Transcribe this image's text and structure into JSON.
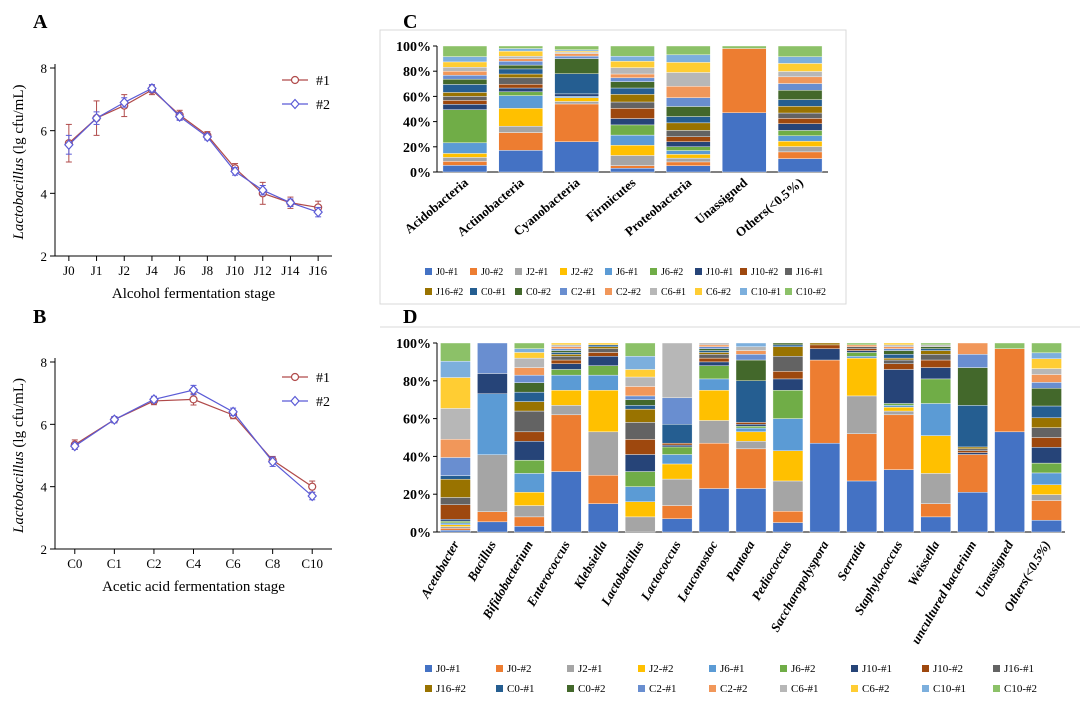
{
  "panels": {
    "A": {
      "letter": "A",
      "chart_data": {
        "type": "line",
        "xlabel": "Alcohol fermentation stage",
        "ylabel_italic": "Lactobacillus",
        "ylabel_suffix": " (lg cfu/mL)",
        "ylim": [
          2,
          8
        ],
        "yticks": [
          2,
          4,
          6,
          8
        ],
        "categories": [
          "J0",
          "J1",
          "J2",
          "J4",
          "J6",
          "J8",
          "J10",
          "J12",
          "J14",
          "J16"
        ],
        "legend_position": "top-right",
        "series": [
          {
            "name": "#1",
            "color": "#b04a4a",
            "marker": "circle",
            "values": [
              5.6,
              6.4,
              6.8,
              7.3,
              6.5,
              5.85,
              4.8,
              4.0,
              3.7,
              3.55
            ],
            "errors": [
              0.6,
              0.55,
              0.35,
              0.15,
              0.15,
              0.12,
              0.15,
              0.35,
              0.18,
              0.2
            ]
          },
          {
            "name": "#2",
            "color": "#5b5bd6",
            "marker": "diamond",
            "values": [
              5.55,
              6.4,
              6.9,
              7.35,
              6.45,
              5.8,
              4.7,
              4.1,
              3.7,
              3.4
            ],
            "errors": [
              0.3,
              0.2,
              0.15,
              0.12,
              0.12,
              0.1,
              0.12,
              0.15,
              0.12,
              0.15
            ]
          }
        ]
      }
    },
    "B": {
      "letter": "B",
      "chart_data": {
        "type": "line",
        "xlabel": "Acetic acid fermentation stage",
        "ylabel_italic": "Lactobacillus",
        "ylabel_suffix": " (lg cfu/mL)",
        "ylim": [
          2,
          8
        ],
        "yticks": [
          2,
          4,
          6,
          8
        ],
        "categories": [
          "C0",
          "C1",
          "C2",
          "C4",
          "C6",
          "C8",
          "C10"
        ],
        "legend_position": "top-right",
        "series": [
          {
            "name": "#1",
            "color": "#b04a4a",
            "marker": "circle",
            "values": [
              5.35,
              6.15,
              6.75,
              6.8,
              6.3,
              4.85,
              4.0
            ],
            "errors": [
              0.15,
              0.1,
              0.12,
              0.18,
              0.12,
              0.12,
              0.18
            ]
          },
          {
            "name": "#2",
            "color": "#5b5bd6",
            "marker": "diamond",
            "values": [
              5.3,
              6.15,
              6.8,
              7.1,
              6.4,
              4.8,
              3.7
            ],
            "errors": [
              0.1,
              0.1,
              0.1,
              0.15,
              0.12,
              0.15,
              0.12
            ]
          }
        ]
      }
    },
    "C": {
      "letter": "C",
      "chart_data": {
        "type": "bar",
        "stacked": "percent",
        "yticks": [
          "0%",
          "20%",
          "40%",
          "60%",
          "80%",
          "100%"
        ],
        "categories": [
          "Acidobacteria",
          "Actinobacteria",
          "Cyanobacteria",
          "Firmicutes",
          "Proteobacteria",
          "Unassigned",
          "Others(<0.5%)"
        ],
        "italic_categories": false,
        "legend_position": "bottom",
        "series_names": [
          "J0-#1",
          "J0-#2",
          "J2-#1",
          "J2-#2",
          "J6-#1",
          "J6-#2",
          "J10-#1",
          "J10-#2",
          "J16-#1",
          "J16-#2",
          "C0-#1",
          "C0-#2",
          "C2-#1",
          "C2-#2",
          "C6-#1",
          "C6-#2",
          "C10-#1",
          "C10-#2"
        ],
        "series_colors": [
          "#4472c4",
          "#ed7d31",
          "#a5a5a5",
          "#ffc000",
          "#5b9bd5",
          "#70ad47",
          "#264478",
          "#9e480e",
          "#636363",
          "#997300",
          "#255e91",
          "#43682b",
          "#698ed0",
          "#f1975a",
          "#b7b7b7",
          "#ffcd33",
          "#7cafdd",
          "#8cc168"
        ],
        "bars": [
          [
            5,
            3,
            3,
            3,
            8,
            25,
            4,
            3,
            3,
            3,
            6,
            4,
            3,
            3,
            3,
            4,
            4,
            8
          ],
          [
            17,
            14,
            5,
            14,
            10,
            3,
            3,
            3,
            5,
            3,
            4,
            3,
            3,
            2,
            2,
            4,
            2,
            2
          ],
          [
            24,
            30,
            2,
            3,
            1,
            0,
            2,
            0,
            0,
            0,
            16,
            12,
            2,
            2,
            1,
            1,
            1,
            3
          ],
          [
            3,
            2,
            8,
            8,
            8,
            8,
            5,
            8,
            5,
            6,
            5,
            5,
            3,
            3,
            5,
            5,
            4,
            8
          ],
          [
            5,
            3,
            3,
            3,
            3,
            3,
            4,
            4,
            5,
            6,
            5,
            8,
            7,
            9,
            11,
            8,
            6,
            7
          ],
          [
            47,
            51,
            0,
            0,
            0,
            0,
            0,
            0,
            0,
            0,
            0,
            0,
            0,
            0,
            0,
            0,
            0,
            2
          ],
          [
            10,
            5,
            4,
            4,
            4,
            4,
            5,
            4,
            4,
            5,
            5,
            7,
            5,
            5,
            4,
            6,
            5,
            8
          ]
        ]
      }
    },
    "D": {
      "letter": "D",
      "chart_data": {
        "type": "bar",
        "stacked": "percent",
        "yticks": [
          "0%",
          "20%",
          "40%",
          "60%",
          "80%",
          "100%"
        ],
        "categories": [
          "Acetobacter",
          "Bacillus",
          "Bifidobacterium",
          "Enterococcus",
          "Klebsiella",
          "Lactobacillus",
          "Lactococcus",
          "Leuconostoc",
          "Pantoea",
          "Pediococcus",
          "Saccharopolyspora",
          "Serratia",
          "Staphylococcus",
          "Weissella",
          "uncultured bacterium",
          "Unassigned",
          "Others(<0.5%)"
        ],
        "italic_categories": true,
        "legend_position": "bottom",
        "series_names": [
          "J0-#1",
          "J0-#2",
          "J2-#1",
          "J2-#2",
          "J6-#1",
          "J6-#2",
          "J10-#1",
          "J10-#2",
          "J16-#1",
          "J16-#2",
          "C0-#1",
          "C0-#2",
          "C2-#1",
          "C2-#2",
          "C6-#1",
          "C6-#2",
          "C10-#1",
          "C10-#2"
        ],
        "series_colors": [
          "#4472c4",
          "#ed7d31",
          "#a5a5a5",
          "#ffc000",
          "#5b9bd5",
          "#70ad47",
          "#264478",
          "#9e480e",
          "#636363",
          "#997300",
          "#255e91",
          "#43682b",
          "#698ed0",
          "#f1975a",
          "#b7b7b7",
          "#ffcd33",
          "#7cafdd",
          "#8cc168"
        ],
        "bars": [
          [
            1,
            1,
            1,
            1,
            1,
            1,
            1,
            8,
            4,
            10,
            2,
            0,
            10,
            10,
            17,
            17,
            9,
            10
          ],
          [
            5,
            5,
            28,
            0,
            30,
            0,
            10,
            0,
            0,
            0,
            0,
            0,
            15,
            0,
            0,
            0,
            0,
            0
          ],
          [
            3,
            5,
            6,
            7,
            10,
            7,
            10,
            5,
            11,
            5,
            5,
            5,
            4,
            4,
            5,
            3,
            2,
            3
          ],
          [
            32,
            30,
            5,
            8,
            8,
            3,
            3,
            2,
            2,
            1,
            1,
            1,
            1,
            1,
            1,
            1,
            0,
            0
          ],
          [
            15,
            15,
            23,
            22,
            8,
            5,
            5,
            2,
            2,
            1,
            1,
            0,
            0,
            0,
            0,
            1,
            0,
            0
          ],
          [
            0,
            0,
            8,
            8,
            8,
            8,
            9,
            8,
            9,
            7,
            2,
            3,
            2,
            5,
            5,
            4,
            7,
            7
          ],
          [
            7,
            7,
            14,
            8,
            5,
            4,
            1,
            1,
            0,
            0,
            10,
            0,
            14,
            0,
            29,
            0,
            0,
            0
          ],
          [
            23,
            24,
            12,
            16,
            6,
            7,
            2,
            2,
            2,
            1,
            1,
            1,
            1,
            1,
            1,
            0,
            0,
            0
          ],
          [
            23,
            21,
            4,
            5,
            2,
            1,
            1,
            1,
            0,
            0,
            22,
            11,
            3,
            2,
            2,
            0,
            2,
            0
          ],
          [
            5,
            6,
            16,
            16,
            17,
            15,
            6,
            4,
            8,
            5,
            1,
            1,
            0,
            0,
            0,
            0,
            0,
            0
          ],
          [
            47,
            44,
            0,
            0,
            0,
            0,
            6,
            2,
            0,
            1,
            0,
            0,
            0,
            0,
            0,
            0,
            0,
            0
          ],
          [
            27,
            25,
            20,
            20,
            1,
            2,
            1,
            1,
            1,
            0,
            0,
            0,
            0,
            1,
            0,
            0,
            0,
            1
          ],
          [
            33,
            29,
            2,
            2,
            1,
            1,
            18,
            3,
            2,
            1,
            2,
            2,
            1,
            1,
            1,
            1,
            0,
            0
          ],
          [
            8,
            7,
            16,
            20,
            17,
            13,
            6,
            4,
            3,
            2,
            1,
            1,
            0,
            0,
            1,
            0,
            0,
            1
          ],
          [
            21,
            20,
            0,
            0,
            0,
            0,
            1,
            1,
            1,
            1,
            22,
            20,
            7,
            6,
            0,
            0,
            0,
            0
          ],
          [
            53,
            44,
            0,
            0,
            0,
            0,
            0,
            0,
            0,
            0,
            0,
            0,
            0,
            0,
            0,
            0,
            0,
            3
          ],
          [
            6,
            10,
            3,
            5,
            6,
            5,
            8,
            5,
            5,
            5,
            6,
            9,
            3,
            4,
            3,
            5,
            3,
            5
          ]
        ]
      }
    }
  }
}
